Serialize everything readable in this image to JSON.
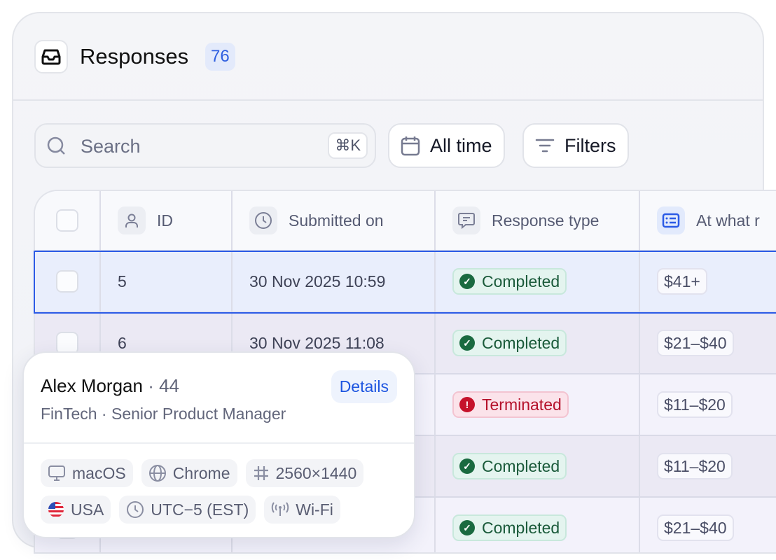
{
  "header": {
    "title": "Responses",
    "count": "76",
    "icon": "inbox-icon"
  },
  "toolbar": {
    "search_placeholder": "Search",
    "search_shortcut": "⌘K",
    "date_filter": "All time",
    "filters": "Filters"
  },
  "table": {
    "columns": [
      {
        "label": "ID",
        "icon": "user-icon"
      },
      {
        "label": "Submitted on",
        "icon": "clock-icon"
      },
      {
        "label": "Response type",
        "icon": "message-icon"
      },
      {
        "label": "At what r",
        "icon": "list-card-icon"
      }
    ],
    "rows": [
      {
        "id": "5",
        "submitted": "30 Nov 2025 10:59",
        "type": "Completed",
        "status": "ok",
        "price": "$41+",
        "selected": true
      },
      {
        "id": "6",
        "submitted": "30 Nov 2025 11:08",
        "type": "Completed",
        "status": "ok",
        "price": "$21–$40"
      },
      {
        "type": "Terminated",
        "status": "bad",
        "price": "$11–$20"
      },
      {
        "type": "Completed",
        "status": "ok",
        "price": "$11–$20"
      },
      {
        "type": "Completed",
        "status": "ok",
        "price": "$21–$40"
      }
    ]
  },
  "popover": {
    "name": "Alex Morgan",
    "age": "· 44",
    "role": "FinTech · Senior Product Manager",
    "details": "Details",
    "chips": [
      {
        "label": "macOS",
        "icon": "monitor-icon"
      },
      {
        "label": "Chrome",
        "icon": "globe-icon"
      },
      {
        "label": "2560×1440",
        "icon": "hash-icon"
      },
      {
        "label": "USA",
        "icon": "us-flag-icon"
      },
      {
        "label": "UTC−5 (EST)",
        "icon": "clock-icon"
      },
      {
        "label": "Wi-Fi",
        "icon": "wifi-signal-icon"
      }
    ]
  },
  "colors": {
    "accent": "#2c5be6",
    "completed": "#1a5a3a",
    "terminated": "#b5122b"
  }
}
